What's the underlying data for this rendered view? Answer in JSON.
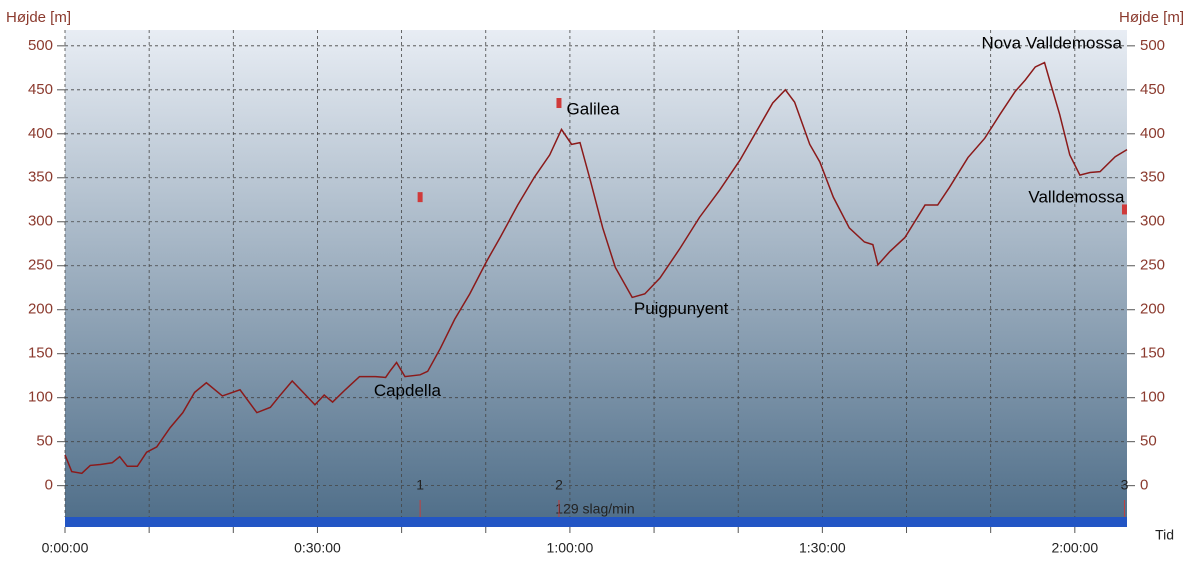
{
  "chart_data": {
    "type": "line",
    "y_label": "Højde [m]",
    "x_label": "Tid",
    "xlim": [
      0,
      126.2
    ],
    "ylim": [
      -47,
      518
    ],
    "yticks": [
      0,
      50,
      100,
      150,
      200,
      250,
      300,
      350,
      400,
      450,
      500
    ],
    "xticks": [
      {
        "value": 0,
        "label": "0:00:00"
      },
      {
        "value": 30,
        "label": "0:30:00"
      },
      {
        "value": 60,
        "label": "1:00:00"
      },
      {
        "value": 90,
        "label": "1:30:00"
      },
      {
        "value": 120,
        "label": "2:00:00"
      }
    ],
    "xgrid": [
      0,
      10,
      20,
      30,
      40,
      50,
      60,
      70,
      80,
      90,
      100,
      110,
      120
    ],
    "grid": true,
    "series": [
      {
        "name": "Højde",
        "color": "#8b1a1a",
        "x": [
          0,
          0.8,
          2.0,
          3.0,
          4.2,
          5.6,
          6.5,
          7.4,
          8.6,
          9.7,
          10.9,
          12.5,
          14.0,
          15.4,
          16.8,
          18.7,
          20.8,
          22.8,
          24.4,
          25.5,
          27.0,
          28.3,
          29.7,
          30.8,
          31.8,
          33.3,
          35.0,
          36.9,
          38.1,
          38.6,
          39.4,
          40.4,
          42.2,
          43.1,
          44.6,
          46.3,
          48.1,
          50.1,
          51.7,
          53.8,
          55.8,
          57.6,
          59.0,
          60.2,
          61.2,
          62.4,
          63.9,
          65.4,
          67.4,
          68.9,
          70.7,
          73.1,
          75.4,
          77.8,
          80.2,
          82.6,
          84.1,
          85.6,
          86.7,
          88.5,
          89.7,
          91.3,
          93.2,
          95.0,
          96.0,
          96.6,
          98.0,
          99.8,
          102.2,
          103.7,
          105.1,
          107.3,
          109.3,
          111.1,
          112.9,
          114.1,
          115.3,
          116.4,
          117.0,
          118.2,
          119.4,
          120.6,
          121.8,
          123.0,
          124.8,
          126.2
        ],
        "values": [
          35,
          16,
          14,
          23,
          24,
          26,
          33,
          22,
          22,
          38,
          44,
          66,
          83,
          106,
          117,
          102,
          109,
          83,
          89,
          102,
          119,
          106,
          92,
          103,
          95,
          109,
          124,
          124,
          123,
          130,
          140,
          124,
          126,
          130,
          156,
          189,
          218,
          255,
          282,
          319,
          351,
          376,
          405,
          388,
          390,
          348,
          293,
          248,
          214,
          218,
          236,
          270,
          305,
          336,
          370,
          410,
          435,
          450,
          436,
          388,
          368,
          328,
          293,
          277,
          274,
          251,
          266,
          282,
          319,
          319,
          339,
          373,
          395,
          422,
          448,
          461,
          476,
          481,
          461,
          422,
          376,
          353,
          356,
          357,
          374,
          382
        ]
      }
    ],
    "annotations": [
      {
        "text": "Capdella",
        "x": 36.7,
        "y": 107,
        "anchor": "start"
      },
      {
        "text": "Galilea",
        "x": 59.6,
        "y": 427,
        "anchor": "start"
      },
      {
        "text": "Puigpunyent",
        "x": 67.6,
        "y": 200,
        "anchor": "start"
      },
      {
        "text": "Nova Valldemossa",
        "x": 125.6,
        "y": 502,
        "anchor": "end"
      },
      {
        "text": "Valldemossa",
        "x": 125.9,
        "y": 327,
        "anchor": "end"
      }
    ],
    "markers": [
      {
        "x": 42.2,
        "y": 328
      },
      {
        "x": 58.7,
        "y": 435
      },
      {
        "x": 125.9,
        "y": 314
      }
    ],
    "laps": [
      {
        "label": "1",
        "x": 42.2
      },
      {
        "label": "2",
        "x": 58.7
      },
      {
        "label": "3",
        "x": 125.9
      }
    ],
    "band_label": "129 slag/min",
    "band_color": "#2255c4"
  }
}
